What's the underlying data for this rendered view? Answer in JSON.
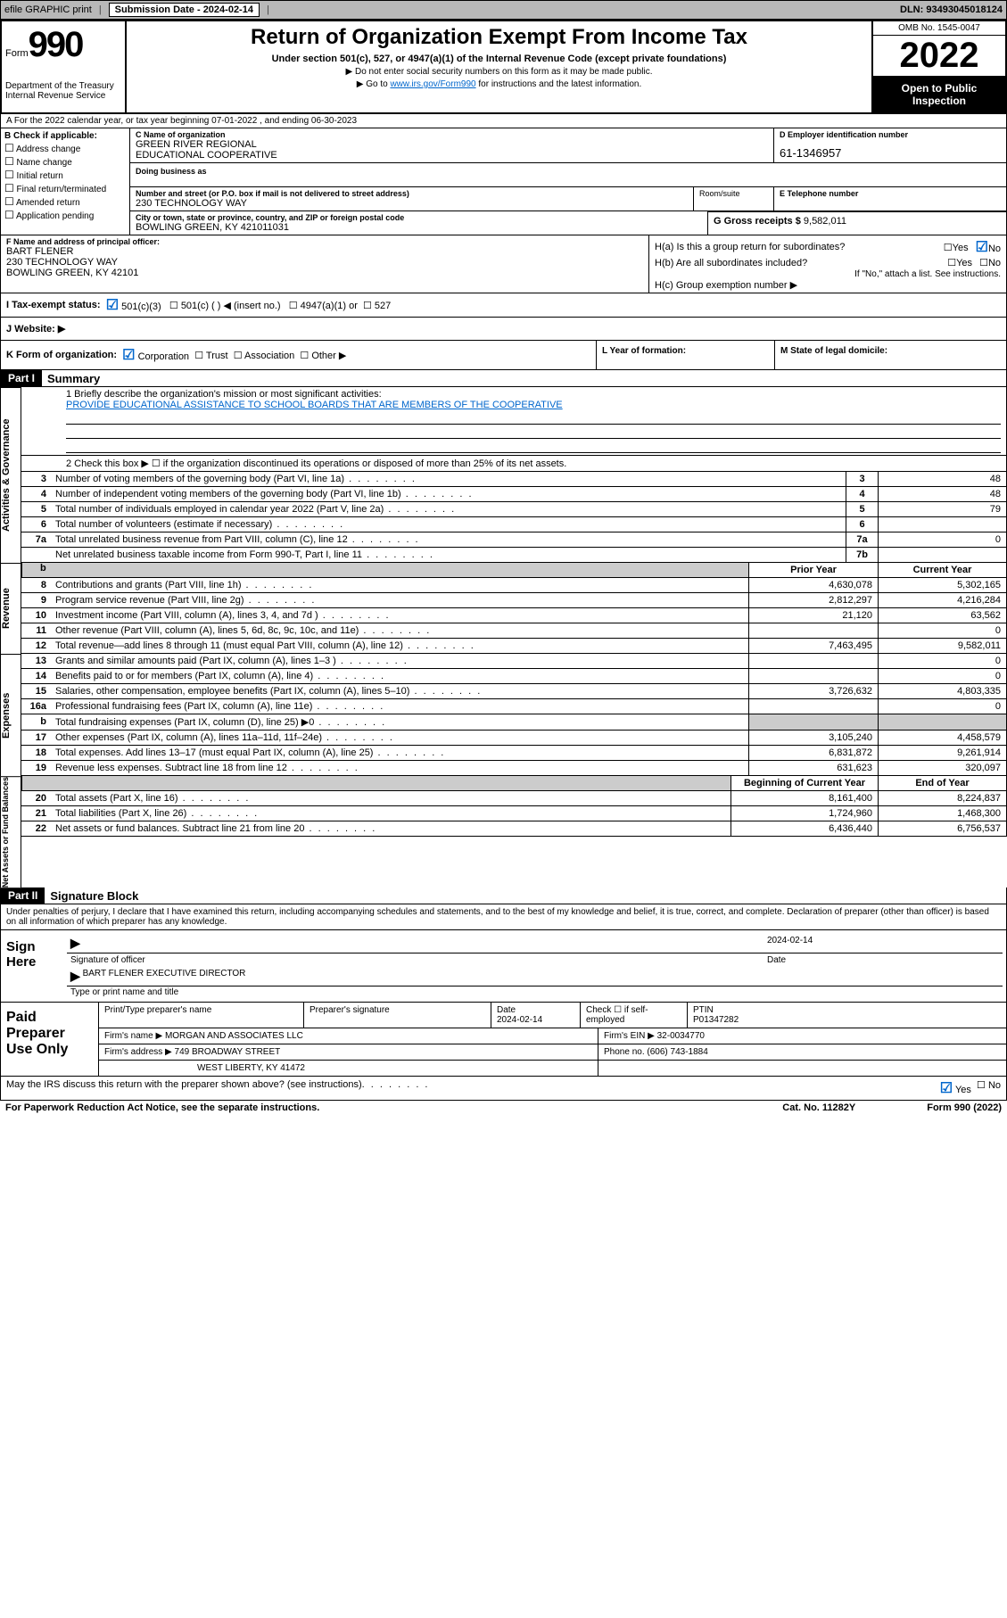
{
  "topbar": {
    "efile": "efile GRAPHIC print",
    "submission_label": "Submission Date - 2024-02-14",
    "dln": "DLN: 93493045018124"
  },
  "header": {
    "form_word": "Form",
    "form_no": "990",
    "dept": "Department of the Treasury\nInternal Revenue Service",
    "title": "Return of Organization Exempt From Income Tax",
    "subtitle": "Under section 501(c), 527, or 4947(a)(1) of the Internal Revenue Code (except private foundations)",
    "note1": "▶ Do not enter social security numbers on this form as it may be made public.",
    "note2_pre": "▶ Go to ",
    "note2_link": "www.irs.gov/Form990",
    "note2_post": " for instructions and the latest information.",
    "omb": "OMB No. 1545-0047",
    "year": "2022",
    "open_pub": "Open to Public Inspection"
  },
  "line_a": "A For the 2022 calendar year, or tax year beginning 07-01-2022   , and ending 06-30-2023",
  "box_b": {
    "label": "B Check if applicable:",
    "opts": [
      "Address change",
      "Name change",
      "Initial return",
      "Final return/terminated",
      "Amended return",
      "Application pending"
    ]
  },
  "box_c": {
    "name_label": "C Name of organization",
    "name": "GREEN RIVER REGIONAL\nEDUCATIONAL COOPERATIVE",
    "dba_label": "Doing business as",
    "street_label": "Number and street (or P.O. box if mail is not delivered to street address)",
    "street": "230 TECHNOLOGY WAY",
    "room_label": "Room/suite",
    "city_label": "City or town, state or province, country, and ZIP or foreign postal code",
    "city": "BOWLING GREEN, KY  421011031"
  },
  "box_d": {
    "label": "D Employer identification number",
    "value": "61-1346957"
  },
  "box_e": {
    "label": "E Telephone number"
  },
  "box_g": {
    "label": "G Gross receipts $",
    "value": "9,582,011"
  },
  "box_f": {
    "label": "F  Name and address of principal officer:",
    "name": "BART FLENER",
    "street": "230 TECHNOLOGY WAY",
    "city": "BOWLING GREEN, KY  42101"
  },
  "box_h": {
    "a": "H(a)  Is this a group return for subordinates?",
    "yes": "Yes",
    "no": "No",
    "b": "H(b)  Are all subordinates included?",
    "note": "If \"No,\" attach a list. See instructions.",
    "c": "H(c)  Group exemption number ▶"
  },
  "line_i": {
    "label": "I    Tax-exempt status:",
    "o1": "501(c)(3)",
    "o2": "501(c) (  ) ◀ (insert no.)",
    "o3": "4947(a)(1) or",
    "o4": "527"
  },
  "line_j": "J    Website: ▶",
  "line_k": {
    "label": "K Form of organization:",
    "o1": "Corporation",
    "o2": "Trust",
    "o3": "Association",
    "o4": "Other ▶",
    "l": "L Year of formation:",
    "m": "M State of legal domicile:"
  },
  "part1": {
    "hdr": "Part I",
    "title": "Summary",
    "l1": "1   Briefly describe the organization's mission or most significant activities:",
    "mission": "PROVIDE EDUCATIONAL ASSISTANCE TO SCHOOL BOARDS THAT ARE MEMBERS OF THE COOPERATIVE",
    "l2": "2   Check this box ▶ ☐  if the organization discontinued its operations or disposed of more than 25% of its net assets."
  },
  "gov_rows": [
    {
      "n": "3",
      "d": "Number of voting members of the governing body (Part VI, line 1a)",
      "box": "3",
      "v": "48"
    },
    {
      "n": "4",
      "d": "Number of independent voting members of the governing body (Part VI, line 1b)",
      "box": "4",
      "v": "48"
    },
    {
      "n": "5",
      "d": "Total number of individuals employed in calendar year 2022 (Part V, line 2a)",
      "box": "5",
      "v": "79"
    },
    {
      "n": "6",
      "d": "Total number of volunteers (estimate if necessary)",
      "box": "6",
      "v": ""
    },
    {
      "n": "7a",
      "d": "Total unrelated business revenue from Part VIII, column (C), line 12",
      "box": "7a",
      "v": "0"
    },
    {
      "n": "",
      "d": "Net unrelated business taxable income from Form 990-T, Part I, line 11",
      "box": "7b",
      "v": ""
    }
  ],
  "two_col_hdr": {
    "gray": "b",
    "prior": "Prior Year",
    "current": "Current Year"
  },
  "rev_rows": [
    {
      "n": "8",
      "d": "Contributions and grants (Part VIII, line 1h)",
      "p": "4,630,078",
      "c": "5,302,165"
    },
    {
      "n": "9",
      "d": "Program service revenue (Part VIII, line 2g)",
      "p": "2,812,297",
      "c": "4,216,284"
    },
    {
      "n": "10",
      "d": "Investment income (Part VIII, column (A), lines 3, 4, and 7d )",
      "p": "21,120",
      "c": "63,562"
    },
    {
      "n": "11",
      "d": "Other revenue (Part VIII, column (A), lines 5, 6d, 8c, 9c, 10c, and 11e)",
      "p": "",
      "c": "0"
    },
    {
      "n": "12",
      "d": "Total revenue—add lines 8 through 11 (must equal Part VIII, column (A), line 12)",
      "p": "7,463,495",
      "c": "9,582,011"
    }
  ],
  "exp_rows": [
    {
      "n": "13",
      "d": "Grants and similar amounts paid (Part IX, column (A), lines 1–3 )",
      "p": "",
      "c": "0"
    },
    {
      "n": "14",
      "d": "Benefits paid to or for members (Part IX, column (A), line 4)",
      "p": "",
      "c": "0"
    },
    {
      "n": "15",
      "d": "Salaries, other compensation, employee benefits (Part IX, column (A), lines 5–10)",
      "p": "3,726,632",
      "c": "4,803,335"
    },
    {
      "n": "16a",
      "d": "Professional fundraising fees (Part IX, column (A), line 11e)",
      "p": "",
      "c": "0"
    },
    {
      "n": "b",
      "d": "Total fundraising expenses (Part IX, column (D), line 25) ▶0",
      "p": "GRAY",
      "c": "GRAY"
    },
    {
      "n": "17",
      "d": "Other expenses (Part IX, column (A), lines 11a–11d, 11f–24e)",
      "p": "3,105,240",
      "c": "4,458,579"
    },
    {
      "n": "18",
      "d": "Total expenses. Add lines 13–17 (must equal Part IX, column (A), line 25)",
      "p": "6,831,872",
      "c": "9,261,914"
    },
    {
      "n": "19",
      "d": "Revenue less expenses. Subtract line 18 from line 12",
      "p": "631,623",
      "c": "320,097"
    }
  ],
  "net_hdr": {
    "begin": "Beginning of Current Year",
    "end": "End of Year"
  },
  "net_rows": [
    {
      "n": "20",
      "d": "Total assets (Part X, line 16)",
      "p": "8,161,400",
      "c": "8,224,837"
    },
    {
      "n": "21",
      "d": "Total liabilities (Part X, line 26)",
      "p": "1,724,960",
      "c": "1,468,300"
    },
    {
      "n": "22",
      "d": "Net assets or fund balances. Subtract line 21 from line 20",
      "p": "6,436,440",
      "c": "6,756,537"
    }
  ],
  "part2": {
    "hdr": "Part II",
    "title": "Signature Block"
  },
  "sig_intro": "Under penalties of perjury, I declare that I have examined this return, including accompanying schedules and statements, and to the best of my knowledge and belief, it is true, correct, and complete. Declaration of preparer (other than officer) is based on all information of which preparer has any knowledge.",
  "sign": {
    "here": "Sign Here",
    "sig_label": "Signature of officer",
    "date": "2024-02-14",
    "date_label": "Date",
    "name": "BART FLENER  EXECUTIVE DIRECTOR",
    "name_label": "Type or print name and title"
  },
  "prep": {
    "label": "Paid Preparer Use Only",
    "r1": {
      "a": "Print/Type preparer's name",
      "b": "Preparer's signature",
      "c": "Date",
      "cv": "2024-02-14",
      "d": "Check ☐ if self-employed",
      "e": "PTIN",
      "ev": "P01347282"
    },
    "r2": {
      "a": "Firm's name   ▶",
      "av": "MORGAN AND ASSOCIATES LLC",
      "b": "Firm's EIN ▶",
      "bv": "32-0034770"
    },
    "r3": {
      "a": "Firm's address ▶",
      "av": "749 BROADWAY STREET",
      "b": "Phone no.",
      "bv": "(606) 743-1884"
    },
    "r4": "WEST LIBERTY, KY  41472"
  },
  "foot1": "May the IRS discuss this return with the preparer shown above? (see instructions)",
  "foot_yes": "Yes",
  "foot_no": "No",
  "foot2a": "For Paperwork Reduction Act Notice, see the separate instructions.",
  "foot2b": "Cat. No. 11282Y",
  "foot2c": "Form 990 (2022)",
  "side_labels": {
    "gov": "Activities & Governance",
    "rev": "Revenue",
    "exp": "Expenses",
    "net": "Net Assets or Fund Balances"
  }
}
